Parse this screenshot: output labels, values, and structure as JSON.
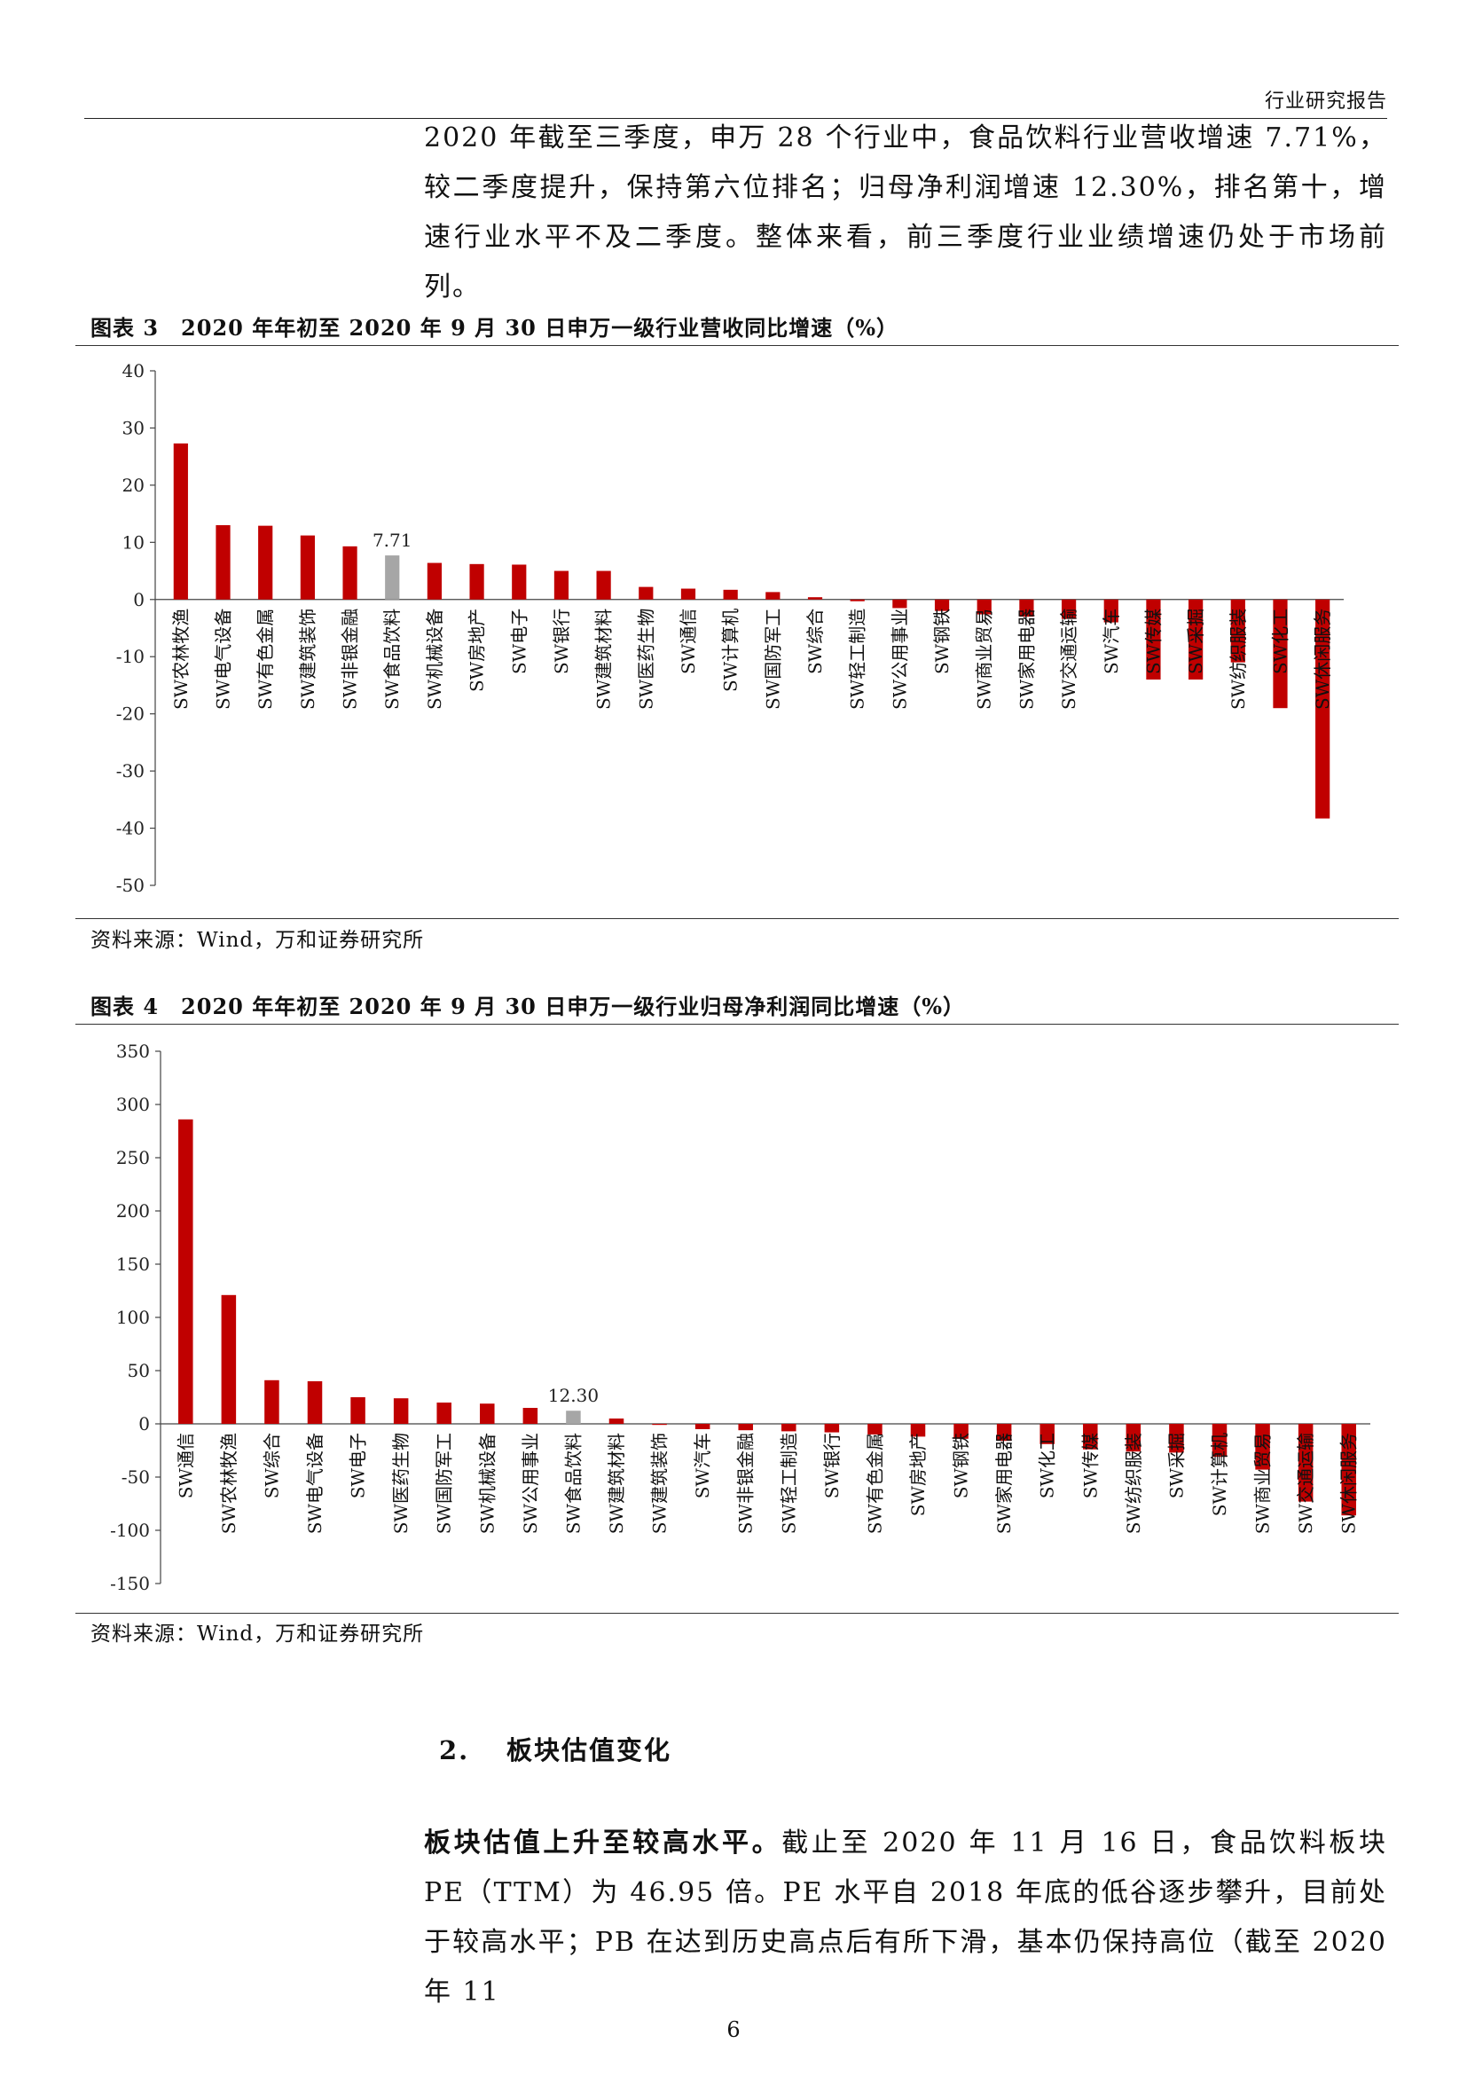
{
  "header": {
    "label": "行业研究报告"
  },
  "intro_paragraph": "2020 年截至三季度，申万 28 个行业中，食品饮料行业营收增速 7.71%，较二季度提升，保持第六位排名；归母净利润增速 12.30%，排名第十，增速行业水平不及二季度。整体来看，前三季度行业业绩增速仍处于市场前列。",
  "figure3": {
    "title": "图表 3　2020 年年初至 2020 年 9 月 30 日申万一级行业营收同比增速（%）",
    "source": "资料来源：Wind，万和证券研究所"
  },
  "figure4": {
    "title": "图表 4　2020 年年初至 2020 年 9 月 30 日申万一级行业归母净利润同比增速（%）",
    "source": "资料来源：Wind，万和证券研究所"
  },
  "section": {
    "number": "2.",
    "title": "板块估值变化"
  },
  "valuation_paragraph": {
    "lead": "板块估值上升至较高水平。",
    "body": "截止至 2020 年 11 月 16 日，食品饮料板块 PE（TTM）为 46.95 倍。PE 水平自 2018 年底的低谷逐步攀升，目前处于较高水平；PB 在达到历史高点后有所下滑，基本仍保持高位（截至 2020 年 11"
  },
  "page_number": "6",
  "colors": {
    "bar": "#c00000",
    "highlight": "#a6a6a6"
  },
  "chart_data": [
    {
      "type": "bar",
      "title": "",
      "categories": [
        "SW农林牧渔",
        "SW电气设备",
        "SW有色金属",
        "SW建筑装饰",
        "SW非银金融",
        "SW食品饮料",
        "SW机械设备",
        "SW房地产",
        "SW电子",
        "SW银行",
        "SW建筑材料",
        "SW医药生物",
        "SW通信",
        "SW计算机",
        "SW国防军工",
        "SW综合",
        "SW轻工制造",
        "SW公用事业",
        "SW钢铁",
        "SW商业贸易",
        "SW家用电器",
        "SW交通运输",
        "SW汽车",
        "SW传媒",
        "SW采掘",
        "SW纺织服装",
        "SW化工",
        "SW休闲服务"
      ],
      "values": [
        27.3,
        13.0,
        12.9,
        11.2,
        9.3,
        7.71,
        6.4,
        6.2,
        6.1,
        5.0,
        5.0,
        2.2,
        1.9,
        1.7,
        1.3,
        0.4,
        -0.3,
        -1.5,
        -2.0,
        -2.6,
        -3.0,
        -3.4,
        -4.0,
        -14.0,
        -14.0,
        -11.0,
        -19.0,
        -38.3
      ],
      "highlight_index": 5,
      "data_label": {
        "index": 5,
        "text": "7.71"
      },
      "ylim": [
        -50,
        40
      ],
      "yticks": [
        40,
        30,
        20,
        10,
        0,
        -10,
        -20,
        -30,
        -40,
        -50
      ],
      "grid": false
    },
    {
      "type": "bar",
      "title": "",
      "categories": [
        "SW通信",
        "SW农林牧渔",
        "SW综合",
        "SW电气设备",
        "SW电子",
        "SW医药生物",
        "SW国防军工",
        "SW机械设备",
        "SW公用事业",
        "SW食品饮料",
        "SW建筑材料",
        "SW建筑装饰",
        "SW汽车",
        "SW非银金融",
        "SW轻工制造",
        "SW银行",
        "SW有色金属",
        "SW房地产",
        "SW钢铁",
        "SW家用电器",
        "SW化工",
        "SW传媒",
        "SW纺织服装",
        "SW采掘",
        "SW计算机",
        "SW商业贸易",
        "SW交通运输",
        "SW休闲服务"
      ],
      "values": [
        286,
        121,
        41,
        40,
        25,
        24,
        20,
        19,
        15,
        12.3,
        5,
        -1,
        -5,
        -6,
        -7,
        -8,
        -10,
        -12,
        -14,
        -16,
        -19,
        -24,
        -26,
        -27,
        -31,
        -43,
        -73,
        -86
      ],
      "highlight_index": 9,
      "data_label": {
        "index": 9,
        "text": "12.30"
      },
      "ylim": [
        -150,
        350
      ],
      "yticks": [
        350,
        300,
        250,
        200,
        150,
        100,
        50,
        0,
        -50,
        -100,
        -150
      ],
      "grid": false
    }
  ]
}
